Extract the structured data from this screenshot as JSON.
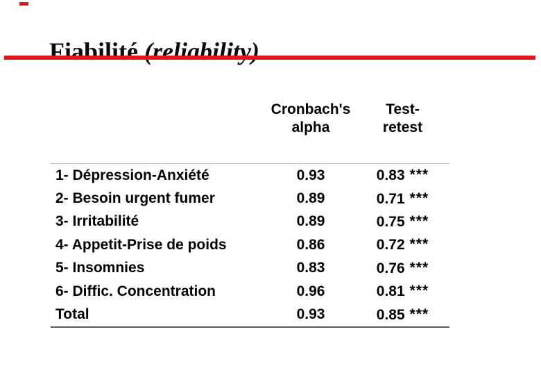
{
  "colors": {
    "accent_red": "#e0181c",
    "header_divider": "#c0c0c0",
    "bottom_border": "#5a5a5a"
  },
  "title": {
    "regular": "Fiabilité ",
    "italic": "(reliability)"
  },
  "table": {
    "header": {
      "col_alpha": "Cronbach's\nalpha",
      "col_retest": "Test-\nretest"
    },
    "rows": [
      {
        "label": "1- Dépression-Anxiété",
        "alpha": "0.93",
        "retest": "0.83",
        "sig": "***"
      },
      {
        "label": "2- Besoin urgent fumer",
        "alpha": "0.89",
        "retest": "0.71",
        "sig": "***"
      },
      {
        "label": "3- Irritabilité",
        "alpha": "0.89",
        "retest": "0.75",
        "sig": "***"
      },
      {
        "label": "4- Appetit-Prise de poids",
        "alpha": "0.86",
        "retest": "0.72",
        "sig": "***"
      },
      {
        "label": "5- Insomnies",
        "alpha": "0.83",
        "retest": "0.76",
        "sig": "***"
      },
      {
        "label": "6- Diffic. Concentration",
        "alpha": "0.96",
        "retest": "0.81",
        "sig": "***"
      },
      {
        "label": "Total",
        "alpha": "0.93",
        "retest": "0.85",
        "sig": "***"
      }
    ]
  }
}
